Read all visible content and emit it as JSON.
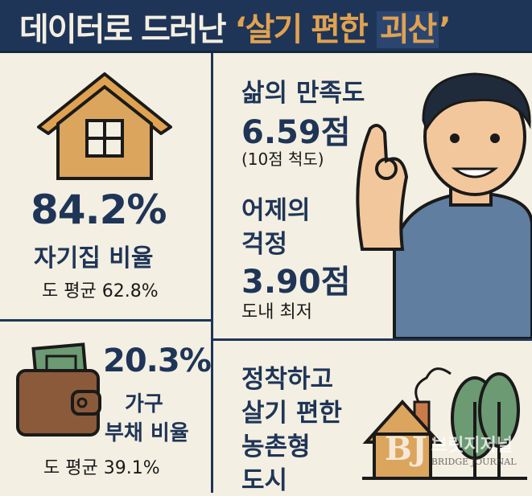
{
  "header": {
    "title_plain": "데이터로 드러난 ",
    "title_highlight": "‘살기 편한 ",
    "title_box": "괴산",
    "title_end": "’"
  },
  "panels": {
    "home_ownership": {
      "value": "84.2%",
      "label": "자기집 비율",
      "avg": "도 평균 62.8%",
      "icon": "house-icon"
    },
    "life_satisfaction": {
      "title": "삶의 만족도",
      "value": "6.59점",
      "scale": "(10점 척도)",
      "worry_title1": "어제의",
      "worry_title2": "걱정",
      "worry_value": "3.90점",
      "worry_note": "도내 최저",
      "illustration": "man-ok-gesture"
    },
    "household_debt": {
      "value": "20.3%",
      "label1": "가구",
      "label2": "부채 비율",
      "avg": "도 평균 39.1%",
      "icon": "wallet-icon"
    },
    "settled_city": {
      "line1": "정착하고",
      "line2": "살기 편한",
      "line3": "농촌형",
      "line4": "도시",
      "icon": "rural-house-trees-icon"
    }
  },
  "watermark": {
    "korean": "브릿지저널",
    "english": "BRIDGE JOURNAL",
    "logo": "BJ"
  },
  "colors": {
    "navy": "#1f3557",
    "gold": "#e0a251",
    "cream": "#f3efe2",
    "brown": "#8a5a3a",
    "green": "#6c9a72"
  }
}
